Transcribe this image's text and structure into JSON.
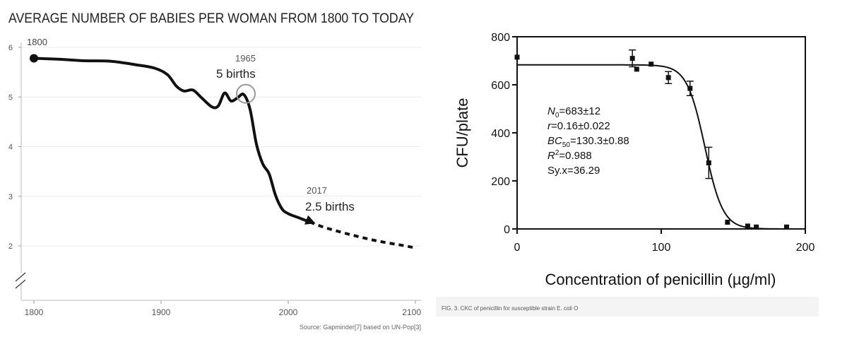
{
  "chart_data": [
    {
      "type": "line",
      "title": "AVERAGE NUMBER OF BABIES PER WOMAN FROM 1800 TO TODAY",
      "x_ticks": [
        "1800",
        "1900",
        "2000",
        "2100"
      ],
      "y_ticks": [
        "2",
        "3",
        "4",
        "5",
        "6"
      ],
      "xlim": [
        1800,
        2100
      ],
      "ylim": [
        2,
        6
      ],
      "grid": true,
      "series": [
        {
          "style": "solid",
          "color": "#111111",
          "points": [
            [
              1800,
              5.78
            ],
            [
              1820,
              5.76
            ],
            [
              1840,
              5.73
            ],
            [
              1860,
              5.72
            ],
            [
              1880,
              5.65
            ],
            [
              1895,
              5.58
            ],
            [
              1905,
              5.45
            ],
            [
              1912,
              5.22
            ],
            [
              1918,
              5.12
            ],
            [
              1925,
              5.14
            ],
            [
              1932,
              4.98
            ],
            [
              1940,
              4.8
            ],
            [
              1945,
              4.82
            ],
            [
              1950,
              5.08
            ],
            [
              1955,
              4.92
            ],
            [
              1960,
              4.98
            ],
            [
              1965,
              5.05
            ],
            [
              1970,
              4.75
            ],
            [
              1975,
              4.05
            ],
            [
              1980,
              3.65
            ],
            [
              1985,
              3.45
            ],
            [
              1990,
              3.02
            ],
            [
              1995,
              2.75
            ],
            [
              2000,
              2.65
            ],
            [
              2010,
              2.55
            ],
            [
              2017,
              2.48
            ]
          ]
        },
        {
          "style": "dashed",
          "color": "#111111",
          "points": [
            [
              2017,
              2.48
            ],
            [
              2030,
              2.36
            ],
            [
              2050,
              2.22
            ],
            [
              2070,
              2.1
            ],
            [
              2090,
              2.01
            ],
            [
              2100,
              1.96
            ]
          ]
        }
      ],
      "annotations": {
        "start_label": "1800",
        "a1965_year": "1965",
        "a1965_text": "5 births",
        "a2017_year": "2017",
        "a2017_text": "2.5 births"
      },
      "source": "Source: Gapminder[7] based on UN-Pop[3]"
    },
    {
      "type": "scatter",
      "xlabel": "Concentration of penicillin  (µg/ml)",
      "ylabel": "CFU/plate",
      "x_ticks": [
        "0",
        "100",
        "200"
      ],
      "y_ticks": [
        "0",
        "200",
        "400",
        "600",
        "800"
      ],
      "xlim": [
        0,
        200
      ],
      "ylim": [
        0,
        800
      ],
      "points": [
        {
          "x": 0,
          "y": 715,
          "err": 0
        },
        {
          "x": 80,
          "y": 710,
          "err": 35
        },
        {
          "x": 83,
          "y": 665,
          "err": 0
        },
        {
          "x": 93,
          "y": 686,
          "err": 0
        },
        {
          "x": 105,
          "y": 630,
          "err": 25
        },
        {
          "x": 120,
          "y": 585,
          "err": 30
        },
        {
          "x": 133,
          "y": 275,
          "err": 65
        },
        {
          "x": 146,
          "y": 28,
          "err": 0
        },
        {
          "x": 160,
          "y": 12,
          "err": 0
        },
        {
          "x": 166,
          "y": 8,
          "err": 0
        },
        {
          "x": 187,
          "y": 8,
          "err": 0
        }
      ],
      "fit": {
        "N0": 683,
        "r": 0.16,
        "BC50": 130.3
      },
      "stats": {
        "l1_a": "N",
        "l1_b": "0",
        "l1_c": "=683±12",
        "l2_a": "r",
        "l2_c": "=0.16±0.022",
        "l3_a": "BC",
        "l3_b": "50",
        "l3_c": "=130.3±0.88",
        "l4_a": "R",
        "l4_b": "2",
        "l4_c": "=0.988",
        "l5": "Sy.x=36.29"
      },
      "caption": "FIG. 3. CKC of penicillin for susceptible strain E. coli O"
    }
  ]
}
